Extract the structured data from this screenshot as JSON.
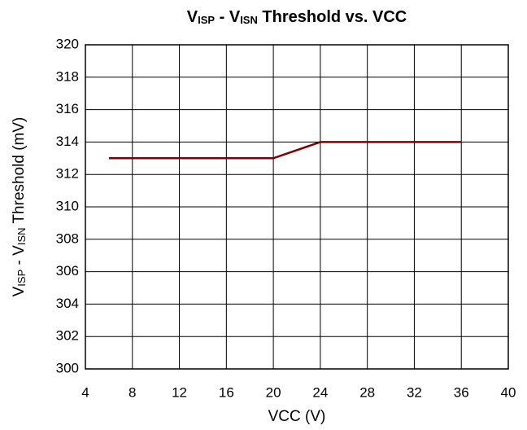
{
  "chart_data": {
    "type": "line",
    "title": [
      "V",
      "ISP",
      " - V",
      "ISN",
      " Threshold vs. VCC"
    ],
    "x_label": "VCC (V)",
    "y_label": [
      "V",
      "ISP",
      " - V",
      "ISN",
      " Threshold (mV)"
    ],
    "x": [
      6,
      20,
      24,
      36
    ],
    "series": [
      {
        "name": "Threshold",
        "color": "#800000",
        "values": [
          313,
          313,
          314,
          314
        ]
      }
    ],
    "xlim": [
      4,
      40
    ],
    "xticks": [
      4,
      8,
      12,
      16,
      20,
      24,
      28,
      32,
      36,
      40
    ],
    "ylim": [
      300,
      320
    ],
    "yticks": [
      300,
      302,
      304,
      306,
      308,
      310,
      312,
      314,
      316,
      318,
      320
    ],
    "grid": true
  }
}
